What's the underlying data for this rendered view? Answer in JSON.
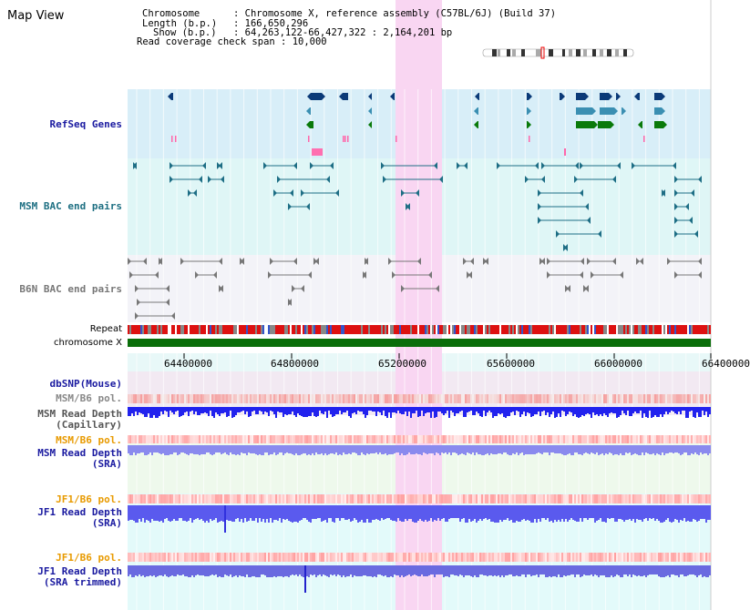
{
  "app": {
    "title": "Map View"
  },
  "info": {
    "chromosome_label": "Chromosome",
    "chromosome_value": "Chromosome X, reference assembly (C57BL/6J) (Build 37)",
    "length_label": "Length (b.p.)",
    "length_value": "166,650,296",
    "show_label": "Show (b.p.)",
    "show_value": "64,263,122-66,427,322 : 2,164,201 bp",
    "coverage_label": "Read coverage check span",
    "coverage_value": "10,000"
  },
  "tracks": {
    "refseq": "RefSeq Genes",
    "msm_bac": "MSM BAC end pairs",
    "b6n_bac": "B6N BAC end pairs",
    "repeat": "Repeat",
    "chromosome": "chromosome X",
    "dbsnp": "dbSNP(Mouse)",
    "msm_b6_pol_1": "MSM/B6 pol.",
    "msm_depth_cap_1": "MSM Read Depth",
    "msm_depth_cap_2": "(Capillary)",
    "msm_b6_pol_2": "MSM/B6 pol.",
    "msm_depth_sra_1": "MSM Read Depth",
    "msm_depth_sra_2": "(SRA)",
    "jf1_b6_pol_1": "JF1/B6 pol.",
    "jf1_depth_sra_1": "JF1 Read Depth",
    "jf1_depth_sra_2": "(SRA)",
    "jf1_b6_pol_2": "JF1/B6 pol.",
    "jf1_depth_trim_1": "JF1 Read Depth",
    "jf1_depth_trim_2": "(SRA trimmed)"
  },
  "axis": {
    "ticks": [
      "64400000",
      "64800000",
      "65200000",
      "65600000",
      "66000000",
      "66400000"
    ]
  },
  "colors": {
    "refseq_bg": "#d8eef8",
    "msm_bg": "#dff6f6",
    "b6n_bg": "#f3f3f8",
    "highlight": "#f9d6f2",
    "gene_dark": "#0b3a78",
    "gene_teal": "#3b8fb2",
    "gene_green": "#0a7a0a",
    "msm_color": "#1e6e85",
    "b6n_color": "#777777",
    "chromosome_bar": "#0a6e0a",
    "depth_blue": "#4646ee",
    "pol_red": "#f07070"
  }
}
